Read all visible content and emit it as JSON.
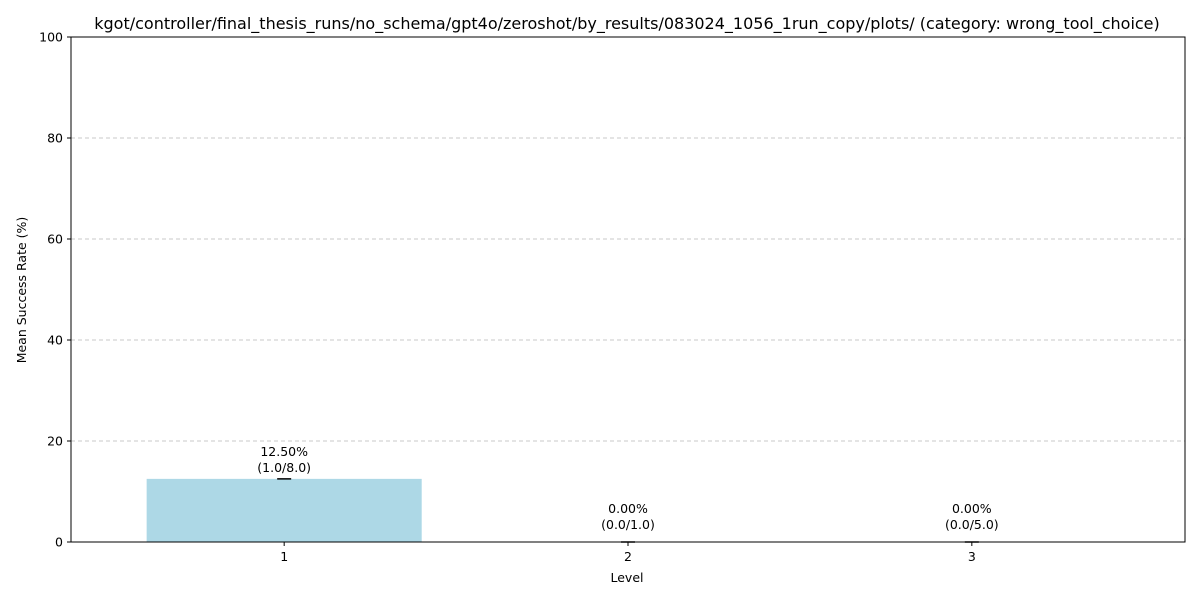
{
  "chart_data": {
    "type": "bar",
    "title": "kgot/controller/final_thesis_runs/no_schema/gpt4o/zeroshot/by_results/083024_1056_1run_copy/plots/ (category: wrong_tool_choice)",
    "xlabel": "Level",
    "ylabel": "Mean Success Rate (%)",
    "categories": [
      "1",
      "2",
      "3"
    ],
    "values": [
      12.5,
      0.0,
      0.0
    ],
    "labels": [
      [
        "12.50%",
        "(1.0/8.0)"
      ],
      [
        "0.00%",
        "(0.0/1.0)"
      ],
      [
        "0.00%",
        "(0.0/5.0)"
      ]
    ],
    "error": [
      0,
      0,
      0
    ],
    "ylim": [
      0,
      100
    ],
    "yticks": [
      0,
      20,
      40,
      60,
      80,
      100
    ],
    "grid": "y-dashed",
    "bar_color": "#add8e6",
    "grid_color": "#c8c8c8"
  }
}
